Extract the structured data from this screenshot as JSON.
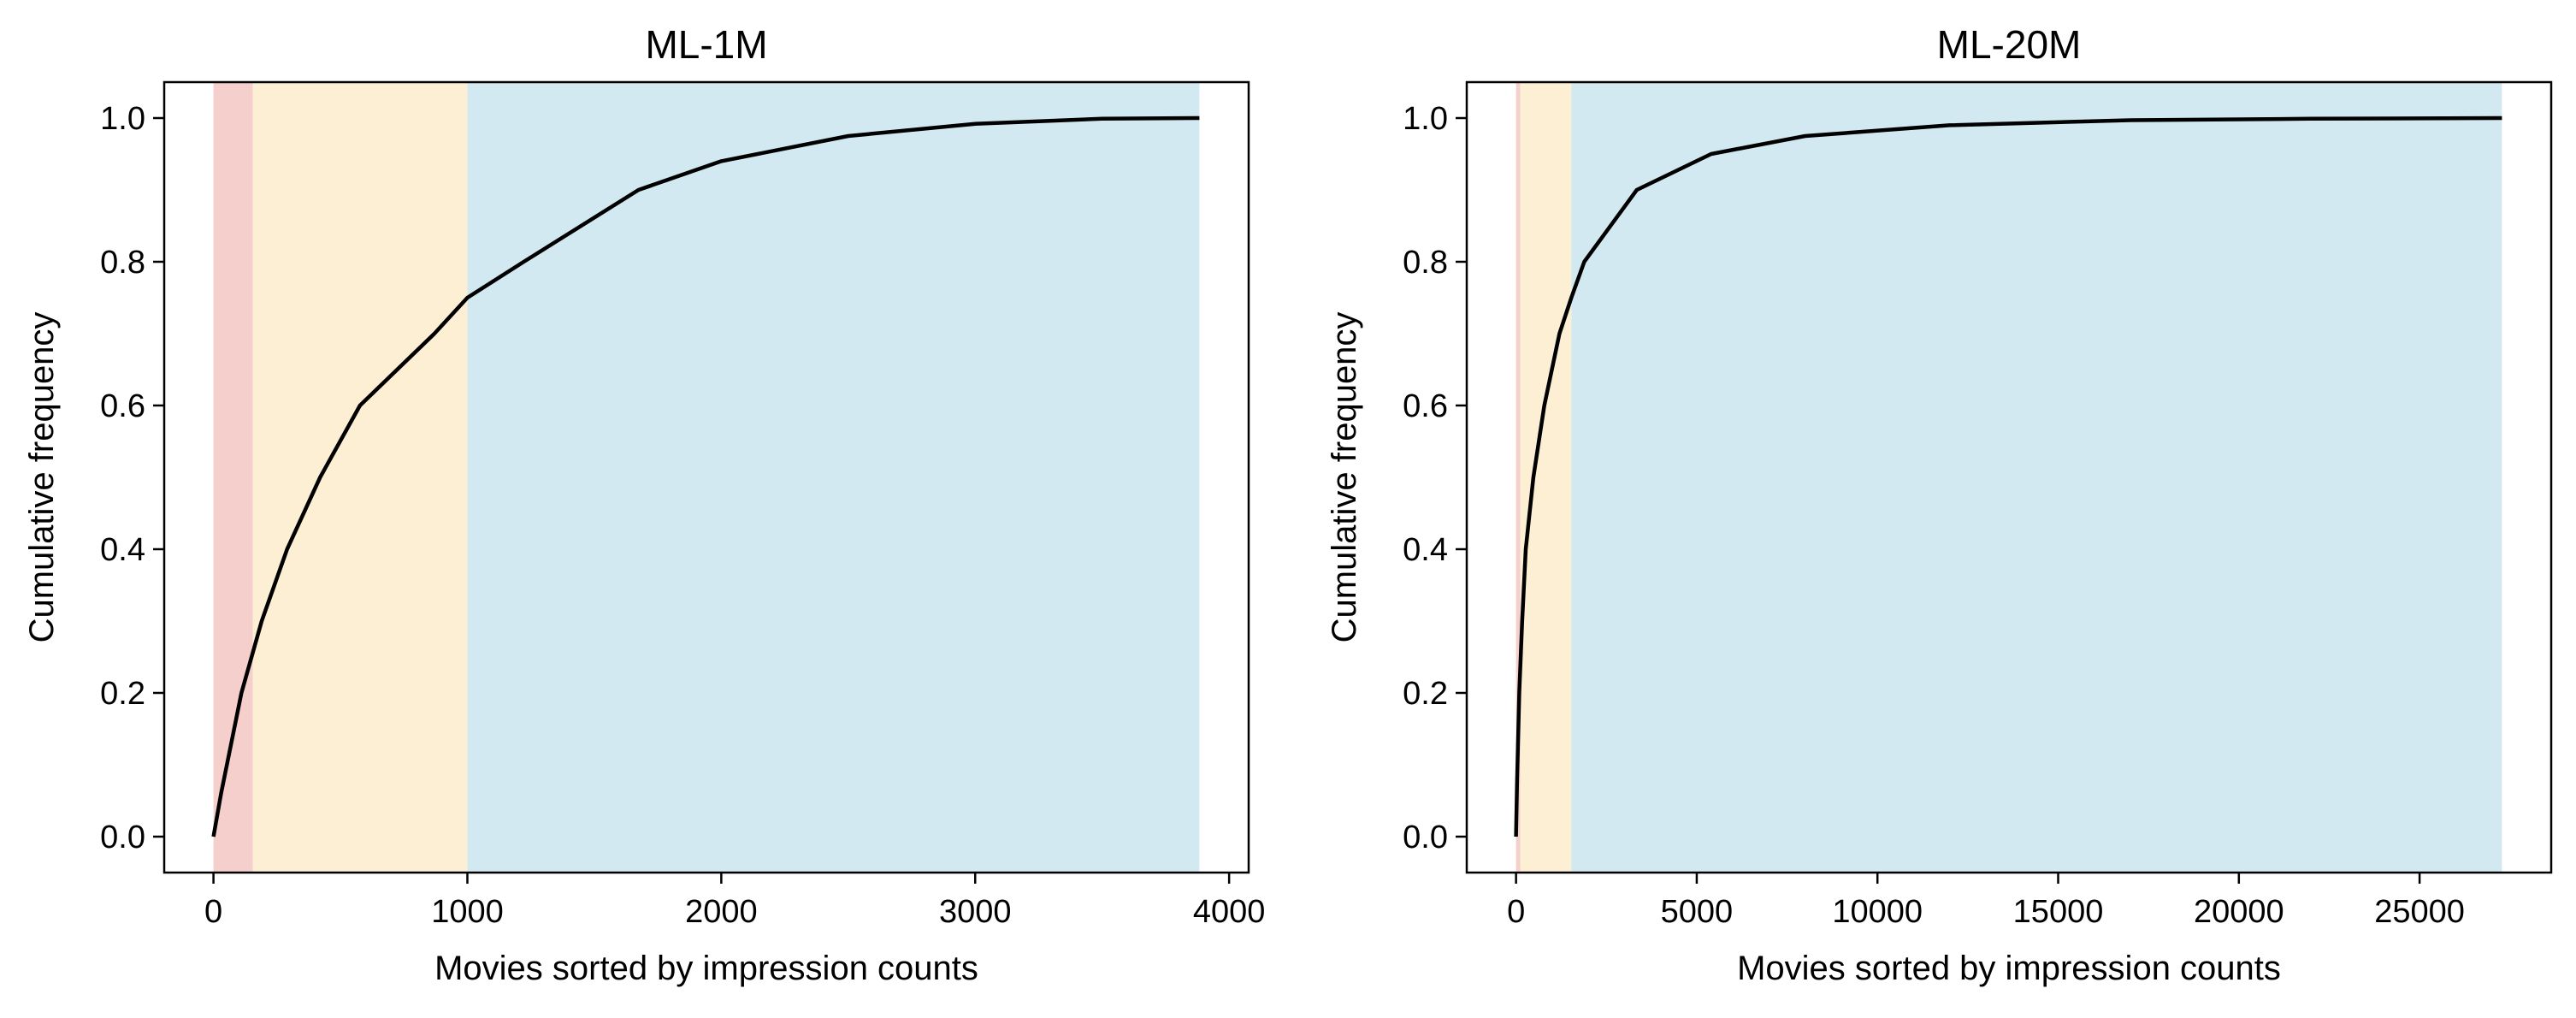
{
  "chart_data": [
    {
      "type": "line",
      "title": "ML-1M",
      "xlabel": "Movies sorted by impression counts",
      "ylabel": "Cumulative frequency",
      "xlim": [
        -194,
        4077
      ],
      "ylim": [
        -0.05,
        1.05
      ],
      "xticks": [
        0,
        1000,
        2000,
        3000,
        4000
      ],
      "yticks": [
        "0.0",
        "0.2",
        "0.4",
        "0.6",
        "0.8",
        "1.0"
      ],
      "grid": false,
      "bands": [
        {
          "from": 0,
          "to": 155,
          "color": "#f5cfcc"
        },
        {
          "from": 155,
          "to": 1000,
          "color": "#fdefd4"
        },
        {
          "from": 1000,
          "to": 3883,
          "color": "#d3e9f1"
        }
      ],
      "line_color": "#000000",
      "x": [
        0,
        30,
        110,
        190,
        290,
        420,
        577,
        870,
        1000,
        1222,
        1674,
        2000,
        2500,
        3000,
        3500,
        3883
      ],
      "y": [
        0,
        0.06,
        0.2,
        0.3,
        0.4,
        0.5,
        0.6,
        0.7,
        0.75,
        0.8,
        0.9,
        0.94,
        0.975,
        0.992,
        0.999,
        1.0
      ]
    },
    {
      "type": "line",
      "title": "ML-20M",
      "xlabel": "Movies sorted by impression counts",
      "ylabel": "Cumulative frequency",
      "xlim": [
        -1364,
        28642
      ],
      "ylim": [
        -0.05,
        1.05
      ],
      "xticks": [
        0,
        5000,
        10000,
        15000,
        20000,
        25000
      ],
      "yticks": [
        "0.0",
        "0.2",
        "0.4",
        "0.6",
        "0.8",
        "1.0"
      ],
      "grid": false,
      "bands": [
        {
          "from": 0,
          "to": 120,
          "color": "#f5cfcc"
        },
        {
          "from": 120,
          "to": 1530,
          "color": "#fdefd4"
        },
        {
          "from": 1530,
          "to": 27278,
          "color": "#d3e9f1"
        }
      ],
      "line_color": "#000000",
      "x": [
        0,
        30,
        88,
        170,
        268,
        480,
        782,
        1200,
        1530,
        1888,
        3341,
        5400,
        8000,
        12000,
        17000,
        22000,
        27278
      ],
      "y": [
        0,
        0.08,
        0.2,
        0.3,
        0.4,
        0.5,
        0.6,
        0.7,
        0.75,
        0.8,
        0.9,
        0.95,
        0.975,
        0.99,
        0.997,
        0.999,
        1.0
      ]
    }
  ]
}
